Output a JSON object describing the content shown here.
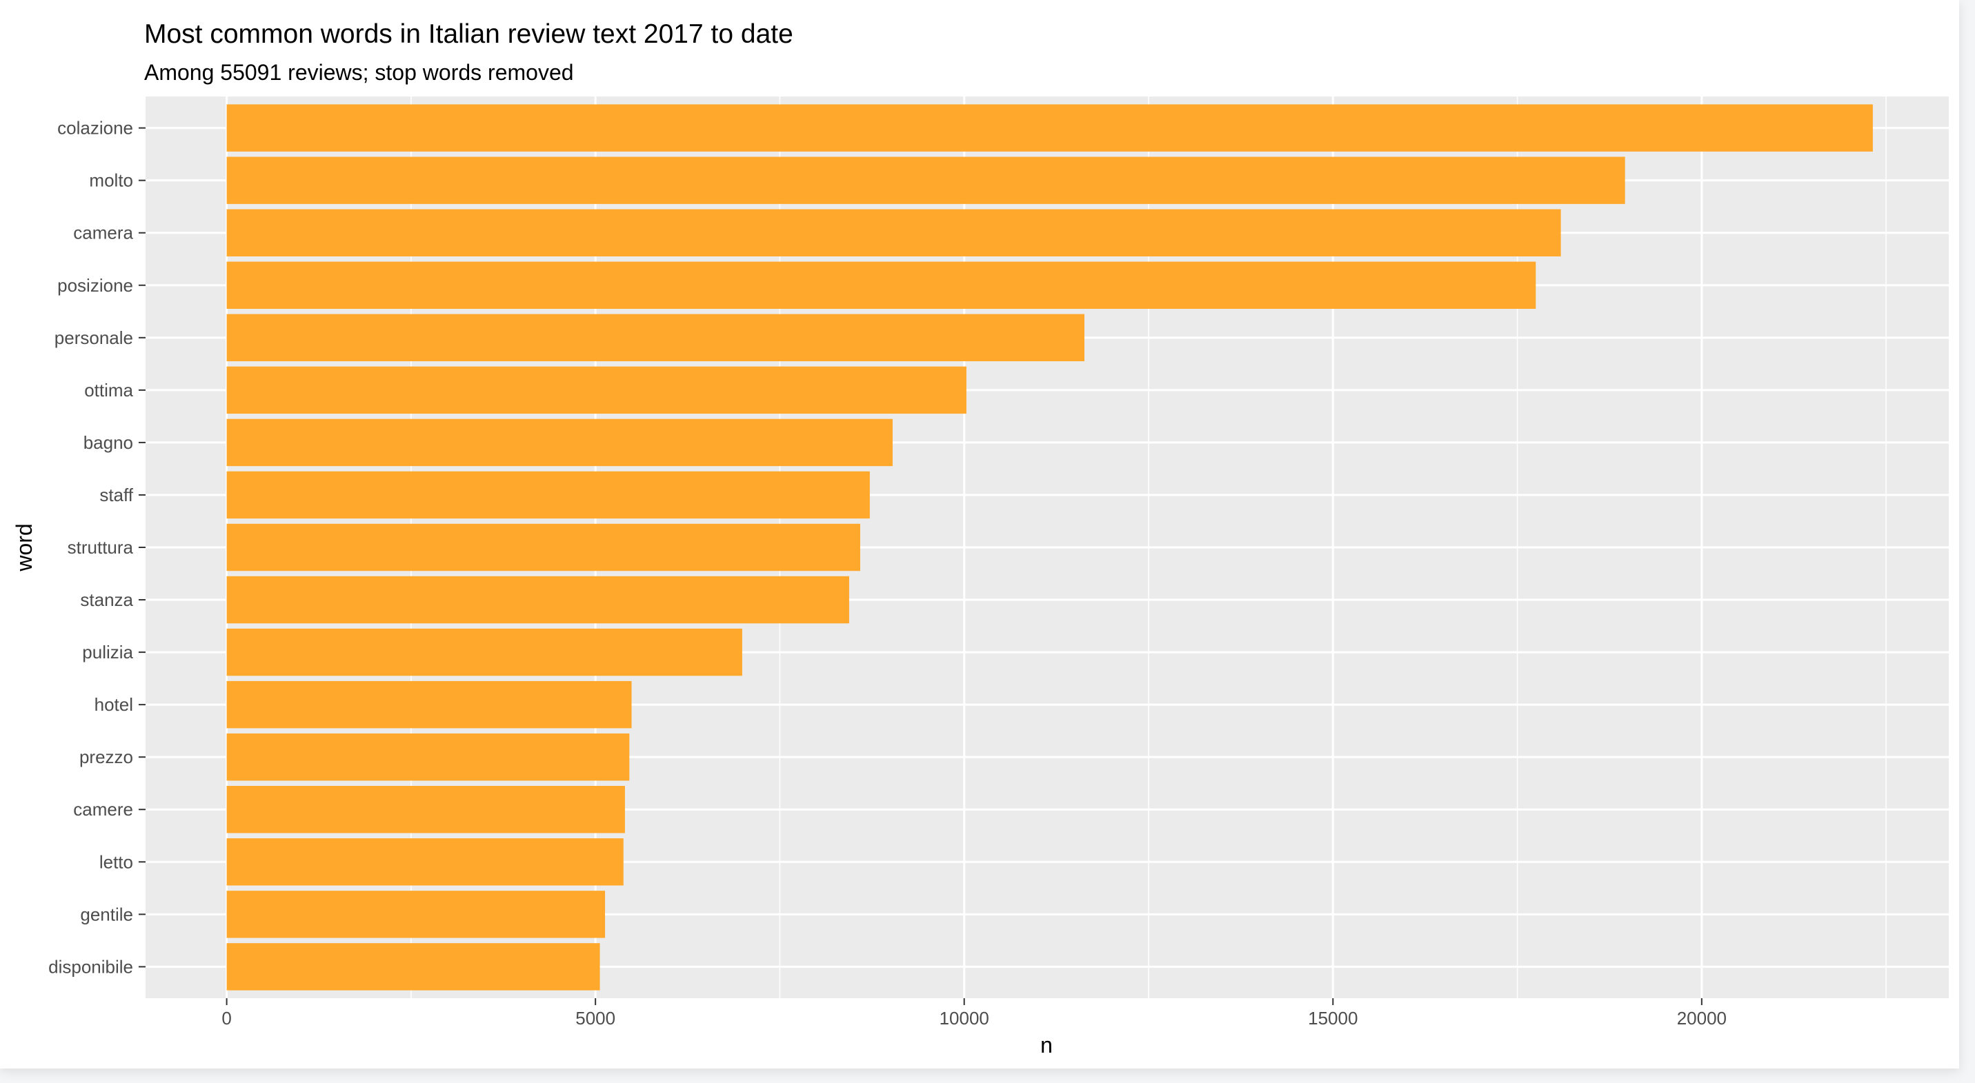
{
  "chart_data": {
    "type": "bar",
    "orientation": "horizontal",
    "title": "Most common words in Italian review text 2017 to date",
    "subtitle": "Among 55091 reviews; stop words removed",
    "xlabel": "n",
    "ylabel": "word",
    "categories": [
      "colazione",
      "molto",
      "camera",
      "posizione",
      "personale",
      "ottima",
      "bagno",
      "staff",
      "struttura",
      "stanza",
      "pulizia",
      "hotel",
      "prezzo",
      "camere",
      "letto",
      "gentile",
      "disponibile"
    ],
    "values": [
      22320,
      18960,
      18090,
      17750,
      11630,
      10030,
      9030,
      8720,
      8590,
      8440,
      6990,
      5490,
      5460,
      5400,
      5380,
      5130,
      5060
    ],
    "xlim": [
      -1100,
      23350
    ],
    "xticks": [
      0,
      5000,
      10000,
      15000,
      20000
    ],
    "xtick_labels": [
      "0",
      "5000",
      "10000",
      "15000",
      "20000"
    ],
    "grid": true,
    "bar_color": "#ffa82b",
    "panel_color": "#ebebeb",
    "grid_color": "#ffffff"
  }
}
